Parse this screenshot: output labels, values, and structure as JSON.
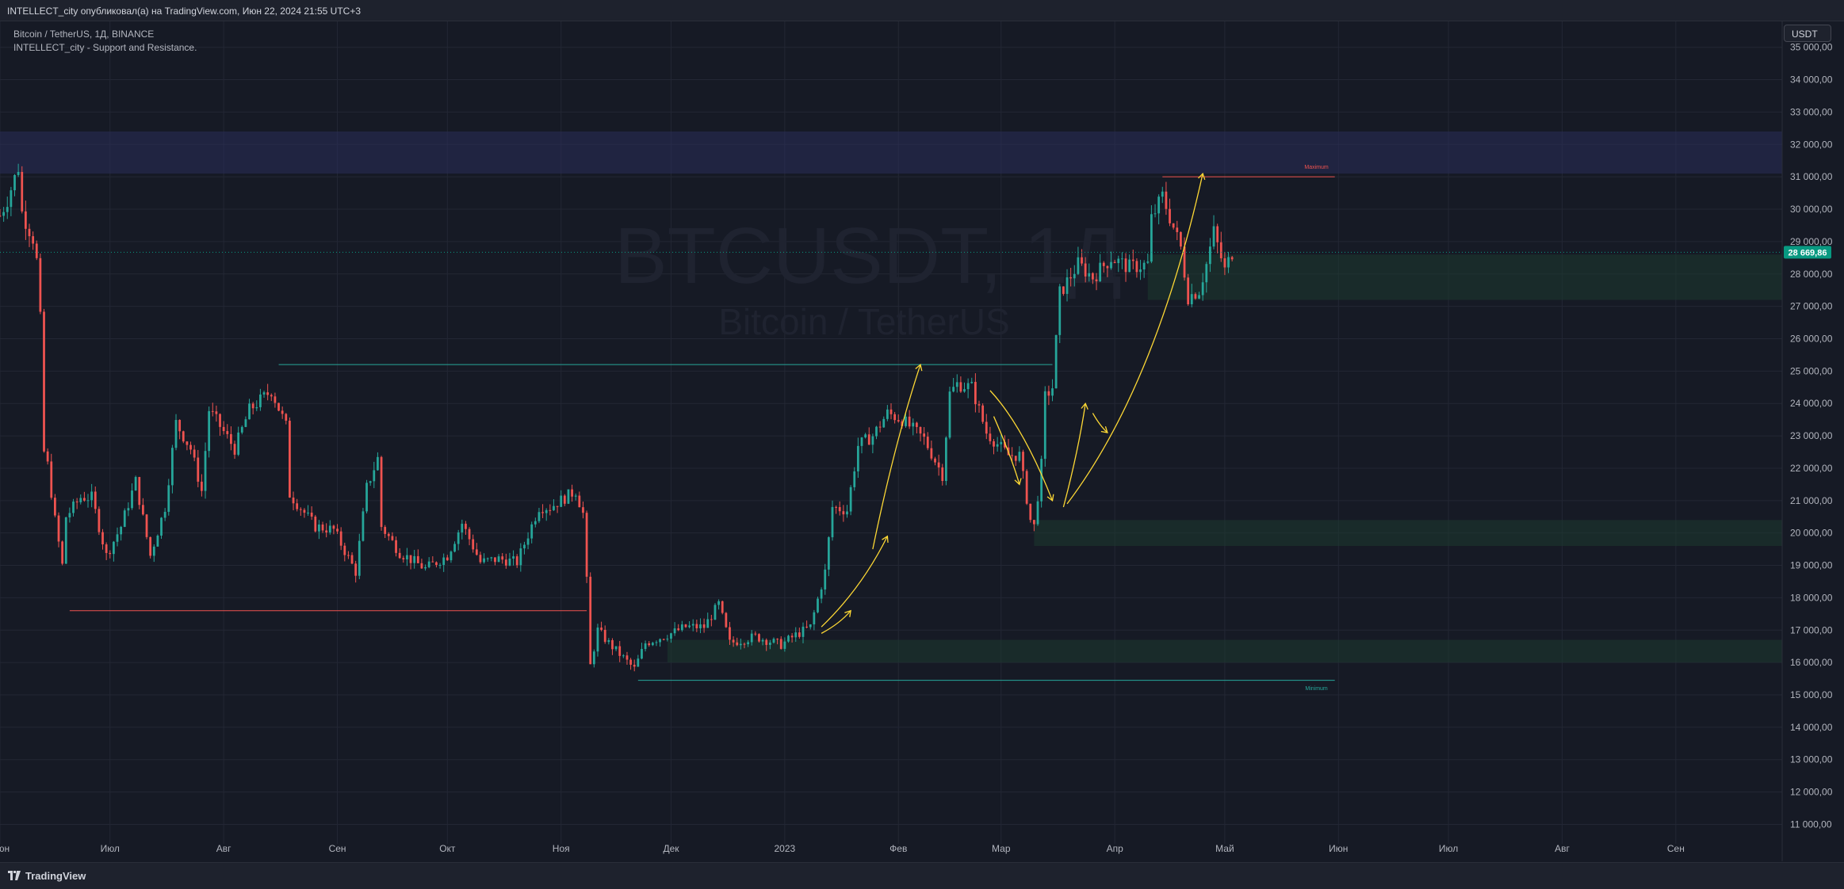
{
  "header": {
    "attribution": "INTELLECT_city опубликовал(а) на TradingView.com, Июн 22, 2024 21:55 UTC+3"
  },
  "legend": {
    "symbol_line": "Bitcoin / TetherUS, 1Д, BINANCE",
    "indicator_line": "INTELLECT_city - Support and Resistance."
  },
  "currency_button": "USDT",
  "footer": {
    "brand": "TradingView"
  },
  "colors": {
    "background": "#161a25",
    "up": "#26a69a",
    "down": "#ef5350",
    "drawing": "#fdd835",
    "resistance_zone": "#2a2e5a",
    "support_zone": "#1e3a30",
    "price_tag": "#089981"
  },
  "chart_data": {
    "type": "candlestick",
    "symbol": "BTCUSDT",
    "watermark": {
      "ticker": "BTCUSDT, 1Д",
      "name": "Bitcoin / TetherUS"
    },
    "ylim": [
      10400,
      35800
    ],
    "y_ticks": [
      11000,
      12000,
      13000,
      14000,
      15000,
      16000,
      17000,
      18000,
      19000,
      20000,
      21000,
      22000,
      23000,
      24000,
      25000,
      26000,
      27000,
      28000,
      29000,
      30000,
      31000,
      32000,
      33000,
      34000,
      35000
    ],
    "y_tick_labels": [
      "11 000,00",
      "12 000,00",
      "13 000,00",
      "14 000,00",
      "15 000,00",
      "16 000,00",
      "17 000,00",
      "18 000,00",
      "19 000,00",
      "20 000,00",
      "21 000,00",
      "22 000,00",
      "23 000,00",
      "24 000,00",
      "25 000,00",
      "26 000,00",
      "27 000,00",
      "28 000,00",
      "29 000,00",
      "30 000,00",
      "31 000,00",
      "32 000,00",
      "33 000,00",
      "34 000,00",
      "35 000,00"
    ],
    "x_start": "2022-06-01",
    "x_end": "2023-09-30",
    "x_ticks": [
      {
        "label": "Июн",
        "date": "2022-06-01"
      },
      {
        "label": "Июл",
        "date": "2022-07-01"
      },
      {
        "label": "Авг",
        "date": "2022-08-01"
      },
      {
        "label": "Сен",
        "date": "2022-09-01"
      },
      {
        "label": "Окт",
        "date": "2022-10-01"
      },
      {
        "label": "Ноя",
        "date": "2022-11-01"
      },
      {
        "label": "Дек",
        "date": "2022-12-01"
      },
      {
        "label": "2023",
        "date": "2023-01-01"
      },
      {
        "label": "Фев",
        "date": "2023-02-01"
      },
      {
        "label": "Мар",
        "date": "2023-03-01"
      },
      {
        "label": "Апр",
        "date": "2023-04-01"
      },
      {
        "label": "Май",
        "date": "2023-05-01"
      },
      {
        "label": "Июн",
        "date": "2023-06-01"
      },
      {
        "label": "Июл",
        "date": "2023-07-01"
      },
      {
        "label": "Авг",
        "date": "2023-08-01"
      },
      {
        "label": "Сен",
        "date": "2023-09-01"
      }
    ],
    "candles_start": "2022-06-01",
    "close_path": [
      [
        "2022-06-01",
        29800
      ],
      [
        "2022-06-03",
        30300
      ],
      [
        "2022-06-06",
        31300
      ],
      [
        "2022-06-07",
        29900
      ],
      [
        "2022-06-10",
        29100
      ],
      [
        "2022-06-11",
        28400
      ],
      [
        "2022-06-12",
        26600
      ],
      [
        "2022-06-13",
        22500
      ],
      [
        "2022-06-14",
        22100
      ],
      [
        "2022-06-16",
        20400
      ],
      [
        "2022-06-18",
        19000
      ],
      [
        "2022-06-19",
        20500
      ],
      [
        "2022-06-23",
        21100
      ],
      [
        "2022-06-26",
        21100
      ],
      [
        "2022-06-30",
        19300
      ],
      [
        "2022-07-04",
        20200
      ],
      [
        "2022-07-08",
        21600
      ],
      [
        "2022-07-12",
        19300
      ],
      [
        "2022-07-16",
        20800
      ],
      [
        "2022-07-19",
        23400
      ],
      [
        "2022-07-23",
        22600
      ],
      [
        "2022-07-26",
        21300
      ],
      [
        "2022-07-28",
        23800
      ],
      [
        "2022-07-31",
        23300
      ],
      [
        "2022-08-04",
        22600
      ],
      [
        "2022-08-08",
        23800
      ],
      [
        "2022-08-14",
        24400
      ],
      [
        "2022-08-18",
        23300
      ],
      [
        "2022-08-19",
        21200
      ],
      [
        "2022-08-26",
        20200
      ],
      [
        "2022-08-31",
        20100
      ],
      [
        "2022-09-06",
        18800
      ],
      [
        "2022-09-09",
        21400
      ],
      [
        "2022-09-12",
        22300
      ],
      [
        "2022-09-13",
        20200
      ],
      [
        "2022-09-18",
        19400
      ],
      [
        "2022-09-25",
        18900
      ],
      [
        "2022-10-01",
        19300
      ],
      [
        "2022-10-05",
        20300
      ],
      [
        "2022-10-10",
        19100
      ],
      [
        "2022-10-15",
        19200
      ],
      [
        "2022-10-20",
        19100
      ],
      [
        "2022-10-26",
        20800
      ],
      [
        "2022-10-29",
        20800
      ],
      [
        "2022-11-05",
        21300
      ],
      [
        "2022-11-07",
        20600
      ],
      [
        "2022-11-08",
        18500
      ],
      [
        "2022-11-09",
        15900
      ],
      [
        "2022-11-11",
        17000
      ],
      [
        "2022-11-14",
        16600
      ],
      [
        "2022-11-21",
        15800
      ],
      [
        "2022-11-24",
        16600
      ],
      [
        "2022-12-01",
        16900
      ],
      [
        "2022-12-05",
        17100
      ],
      [
        "2022-12-10",
        17100
      ],
      [
        "2022-12-14",
        17800
      ],
      [
        "2022-12-17",
        16600
      ],
      [
        "2022-12-24",
        16800
      ],
      [
        "2022-12-31",
        16550
      ],
      [
        "2023-01-04",
        16850
      ],
      [
        "2023-01-08",
        17100
      ],
      [
        "2023-01-12",
        18800
      ],
      [
        "2023-01-14",
        20800
      ],
      [
        "2023-01-18",
        20700
      ],
      [
        "2023-01-21",
        22700
      ],
      [
        "2023-01-25",
        23000
      ],
      [
        "2023-01-29",
        23700
      ],
      [
        "2023-02-02",
        23500
      ],
      [
        "2023-02-08",
        22900
      ],
      [
        "2023-02-13",
        21800
      ],
      [
        "2023-02-15",
        24300
      ],
      [
        "2023-02-17",
        24600
      ],
      [
        "2023-02-21",
        24500
      ],
      [
        "2023-02-25",
        23100
      ],
      [
        "2023-03-03",
        22400
      ],
      [
        "2023-03-06",
        22400
      ],
      [
        "2023-03-09",
        20400
      ],
      [
        "2023-03-10",
        20200
      ],
      [
        "2023-03-12",
        22100
      ],
      [
        "2023-03-13",
        24200
      ],
      [
        "2023-03-15",
        24500
      ],
      [
        "2023-03-17",
        27400
      ],
      [
        "2023-03-22",
        28300
      ],
      [
        "2023-03-26",
        27900
      ],
      [
        "2023-03-31",
        28500
      ],
      [
        "2023-04-05",
        28200
      ],
      [
        "2023-04-10",
        28300
      ],
      [
        "2023-04-11",
        29700
      ],
      [
        "2023-04-14",
        30400
      ],
      [
        "2023-04-19",
        28800
      ],
      [
        "2023-04-21",
        27300
      ],
      [
        "2023-04-24",
        27500
      ],
      [
        "2023-04-26",
        28300
      ],
      [
        "2023-04-28",
        29300
      ],
      [
        "2023-05-01",
        28100
      ],
      [
        "2023-05-03",
        28670
      ]
    ],
    "last_price": 28669.86,
    "last_price_label": "28 669,86",
    "zones": [
      {
        "kind": "resistance",
        "from": "2022-06-01",
        "to": "2023-09-30",
        "low": 31100,
        "high": 32400
      },
      {
        "kind": "support",
        "from": "2023-04-10",
        "to": "2023-09-30",
        "low": 27200,
        "high": 28600
      },
      {
        "kind": "support",
        "from": "2023-03-10",
        "to": "2023-09-30",
        "low": 19600,
        "high": 20400
      },
      {
        "kind": "support",
        "from": "2022-11-30",
        "to": "2023-09-30",
        "low": 16000,
        "high": 16700
      }
    ],
    "lines": [
      {
        "color": "down",
        "from": "2022-06-20",
        "to": "2022-11-08",
        "y": 17600
      },
      {
        "color": "up",
        "from": "2022-08-16",
        "to": "2023-03-15",
        "y": 25200
      },
      {
        "color": "up",
        "from": "2022-11-22",
        "to": "2023-05-31",
        "y": 15450
      },
      {
        "color": "down",
        "from": "2023-04-14",
        "to": "2023-05-31",
        "y": 31000
      }
    ],
    "labels": [
      {
        "text": "Maximum",
        "date": "2023-05-26",
        "y": 31250,
        "color": "down"
      },
      {
        "text": "Minimum",
        "date": "2023-05-26",
        "y": 15150,
        "color": "up"
      }
    ],
    "annotations": [
      {
        "type": "arrow",
        "points": [
          [
            "2023-01-11",
            16900
          ],
          [
            "2023-01-16",
            17200
          ],
          [
            "2023-01-19",
            17600
          ]
        ]
      },
      {
        "type": "arrow",
        "points": [
          [
            "2023-01-11",
            17100
          ],
          [
            "2023-01-22",
            18300
          ],
          [
            "2023-01-29",
            19900
          ]
        ]
      },
      {
        "type": "arrow",
        "points": [
          [
            "2023-01-25",
            19500
          ],
          [
            "2023-01-31",
            22800
          ],
          [
            "2023-02-07",
            25200
          ]
        ]
      },
      {
        "type": "arrow",
        "points": [
          [
            "2023-02-26",
            24400
          ],
          [
            "2023-03-07",
            23300
          ],
          [
            "2023-03-15",
            21000
          ]
        ]
      },
      {
        "type": "arrow",
        "points": [
          [
            "2023-02-27",
            23600
          ],
          [
            "2023-03-04",
            22300
          ],
          [
            "2023-03-06",
            21500
          ]
        ]
      },
      {
        "type": "arrow",
        "points": [
          [
            "2023-03-18",
            20800
          ],
          [
            "2023-03-22",
            22500
          ],
          [
            "2023-03-24",
            24000
          ]
        ]
      },
      {
        "type": "arrow",
        "points": [
          [
            "2023-03-26",
            23700
          ],
          [
            "2023-03-28",
            23300
          ],
          [
            "2023-03-30",
            23100
          ]
        ]
      },
      {
        "type": "arrow",
        "points": [
          [
            "2023-03-19",
            20900
          ],
          [
            "2023-04-12",
            24500
          ],
          [
            "2023-04-25",
            31100
          ]
        ]
      }
    ]
  }
}
